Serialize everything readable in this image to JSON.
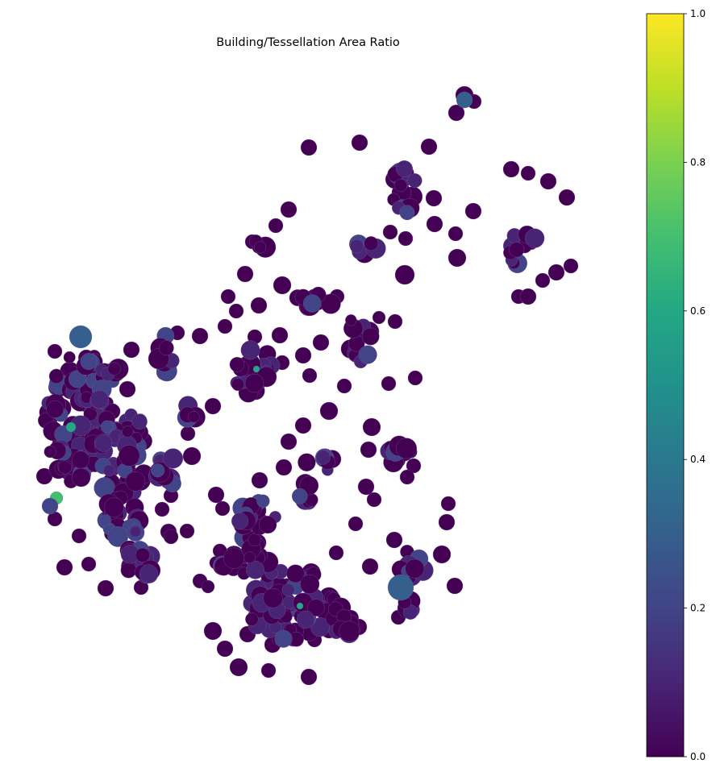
{
  "title": "Building/Tessellation Area Ratio",
  "colorbar": {
    "colormap": "viridis",
    "min": 0.0,
    "max": 1.0,
    "ticks": [
      "0.0",
      "0.2",
      "0.4",
      "0.6",
      "0.8",
      "1.0"
    ],
    "stops": [
      "#440154",
      "#482475",
      "#414487",
      "#355f8d",
      "#2a788e",
      "#21918c",
      "#22a884",
      "#44bf70",
      "#7ad151",
      "#bddf26",
      "#fde725"
    ]
  },
  "map": {
    "dominant_color": "#440154",
    "cell_edge_color": "#7a5aa0",
    "notable_values": [
      0.3,
      0.55,
      0.65,
      0.2
    ]
  }
}
